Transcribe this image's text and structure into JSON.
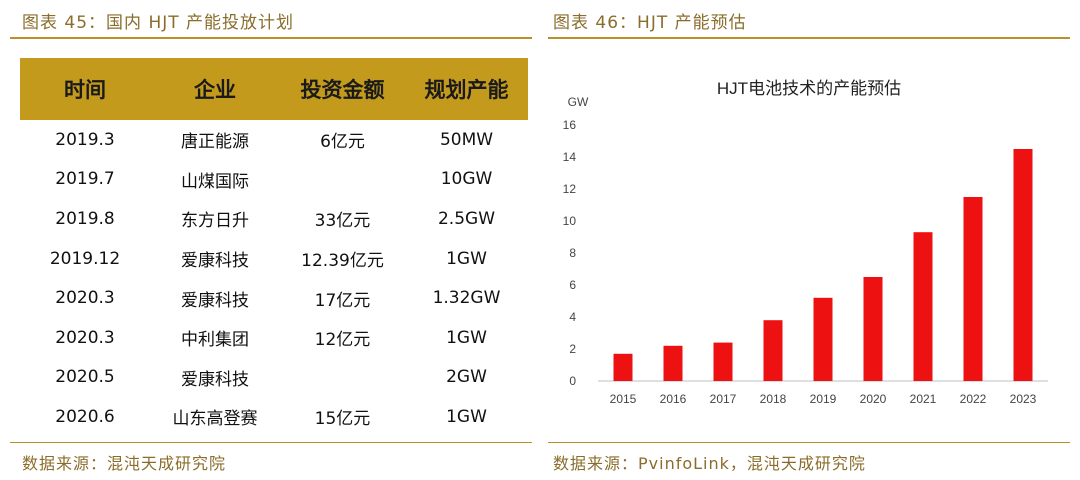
{
  "left_figure": {
    "title": "图表 45：国内 HJT 产能投放计划",
    "source": "数据来源：混沌天成研究院",
    "table": {
      "headers": [
        "时间",
        "企业",
        "投资金额",
        "规划产能"
      ],
      "rows": [
        [
          "2019.3",
          "唐正能源",
          "6亿元",
          "50MW"
        ],
        [
          "2019.7",
          "山煤国际",
          "",
          "10GW"
        ],
        [
          "2019.8",
          "东方日升",
          "33亿元",
          "2.5GW"
        ],
        [
          "2019.12",
          "爱康科技",
          "12.39亿元",
          "1GW"
        ],
        [
          "2020.3",
          "爱康科技",
          "17亿元",
          "1.32GW"
        ],
        [
          "2020.3",
          "中利集团",
          "12亿元",
          "1GW"
        ],
        [
          "2020.5",
          "爱康科技",
          "",
          "2GW"
        ],
        [
          "2020.6",
          "山东高登赛",
          "15亿元",
          "1GW"
        ]
      ]
    }
  },
  "right_figure": {
    "title": "图表 46：HJT 产能预估",
    "source": "数据来源：PvinfoLink，混沌天成研究院"
  },
  "colors": {
    "accent": "#b8912a",
    "header_bg": "#c39a1c",
    "bar": "#ee1111"
  },
  "chart_data": {
    "type": "bar",
    "title": "HJT电池技术的产能预估",
    "ylabel": "GW",
    "xlabel": "",
    "categories": [
      "2015",
      "2016",
      "2017",
      "2018",
      "2019",
      "2020",
      "2021",
      "2022",
      "2023"
    ],
    "values": [
      1.7,
      2.2,
      2.4,
      3.8,
      5.2,
      6.5,
      9.3,
      11.5,
      14.5
    ],
    "ylim": [
      0,
      16
    ],
    "yticks": [
      0,
      2,
      4,
      6,
      8,
      10,
      12,
      14,
      16
    ],
    "grid": false,
    "legend": "none"
  }
}
